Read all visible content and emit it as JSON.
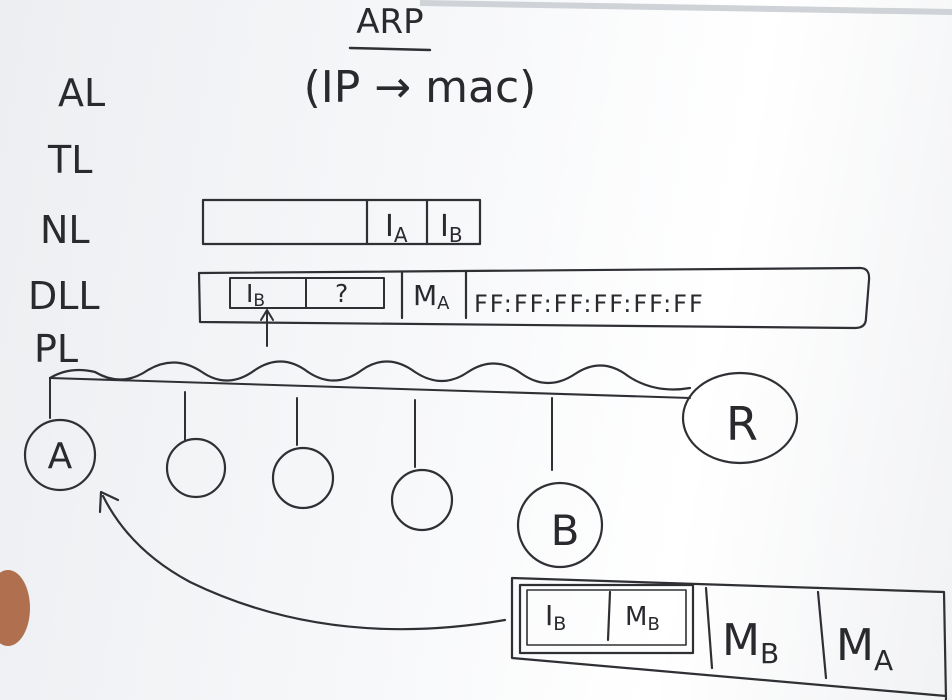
{
  "title": "ARP",
  "subtitle": "(IP → mac)",
  "layers": [
    "AL",
    "TL",
    "NL",
    "DLL",
    "PL"
  ],
  "nl_packet": {
    "src_ip": "I",
    "src_ip_sub": "A",
    "dst_ip": "I",
    "dst_ip_sub": "B"
  },
  "arp_request": {
    "payload_ip": "I",
    "payload_ip_sub": "B",
    "payload_unknown": "?",
    "src_mac": "M",
    "src_mac_sub": "A",
    "dst_mac": "FF:FF:FF:FF:FF:FF"
  },
  "nodes": {
    "sender": "A",
    "target": "B",
    "router": "R"
  },
  "arp_reply": {
    "payload_ip": "I",
    "payload_ip_sub": "B",
    "payload_mac": "M",
    "payload_mac_sub": "B",
    "src_mac": "M",
    "src_mac_sub": "B",
    "dst_mac": "M",
    "dst_mac_sub": "A"
  },
  "colors": {
    "ink": "#2f3034",
    "board": "#f4f5f7"
  }
}
